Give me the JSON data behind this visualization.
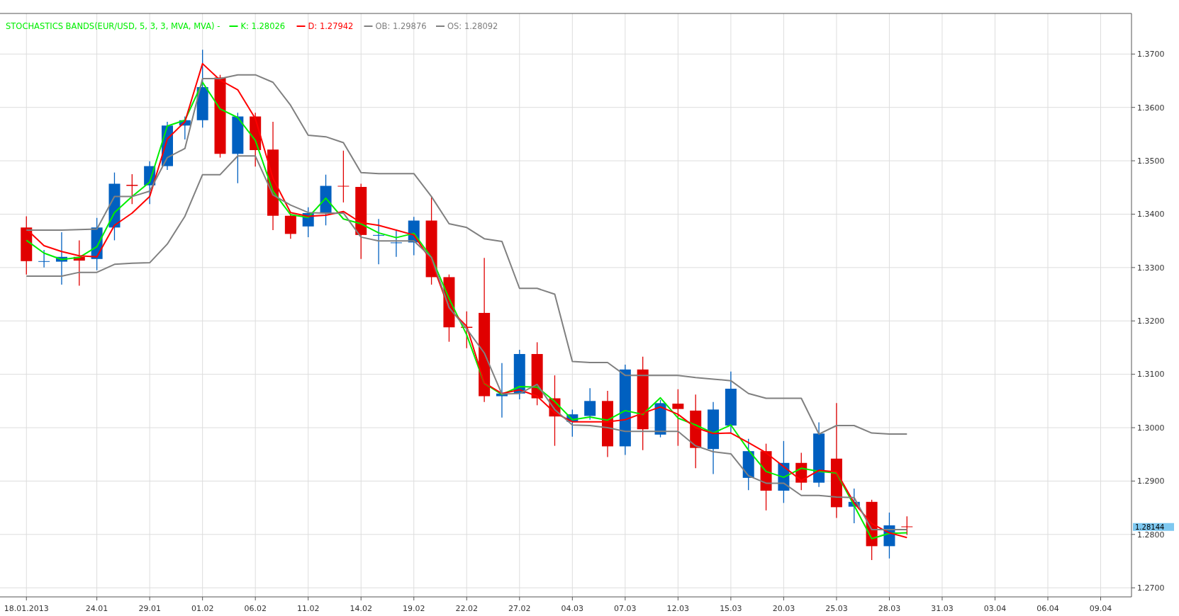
{
  "chart_data": {
    "type": "candlestick",
    "title": "STOCHASTICS BANDS(EUR/USD, 5, 3, 3, MVA, MVA) -",
    "categories": [
      "18.01.2013",
      null,
      null,
      null,
      "24.01",
      null,
      null,
      "29.01",
      null,
      null,
      "01.02",
      null,
      null,
      "06.02",
      null,
      null,
      "11.02",
      null,
      null,
      "14.02",
      null,
      null,
      "19.02",
      null,
      null,
      "22.02",
      null,
      null,
      "27.02",
      null,
      null,
      "04.03",
      null,
      null,
      "07.03",
      null,
      null,
      "12.03",
      null,
      null,
      "15.03",
      null,
      null,
      "20.03",
      null,
      null,
      "25.03",
      null,
      null,
      "28.03",
      null,
      null,
      "31.03",
      null,
      null,
      "03.04",
      null,
      null,
      "06.04",
      null,
      null,
      "09.04",
      null
    ],
    "ohlc": [
      [
        1.3375,
        1.3396,
        1.3287,
        1.3312
      ],
      [
        1.3311,
        1.3333,
        1.33,
        1.3312
      ],
      [
        1.3311,
        1.3366,
        1.3268,
        1.332
      ],
      [
        1.332,
        1.3351,
        1.3266,
        1.3313
      ],
      [
        1.3316,
        1.3393,
        1.3295,
        1.3375
      ],
      [
        1.3375,
        1.3478,
        1.3351,
        1.3457
      ],
      [
        1.3455,
        1.3475,
        1.3419,
        1.3453
      ],
      [
        1.3454,
        1.3499,
        1.3419,
        1.349
      ],
      [
        1.349,
        1.3573,
        1.3483,
        1.3566
      ],
      [
        1.3566,
        1.3583,
        1.354,
        1.3576
      ],
      [
        1.3576,
        1.3708,
        1.3562,
        1.3638
      ],
      [
        1.3656,
        1.3661,
        1.3506,
        1.3513
      ],
      [
        1.3513,
        1.359,
        1.3458,
        1.3583
      ],
      [
        1.3583,
        1.359,
        1.3489,
        1.352
      ],
      [
        1.3521,
        1.3573,
        1.337,
        1.3397
      ],
      [
        1.3397,
        1.34,
        1.3354,
        1.3363
      ],
      [
        1.3377,
        1.3413,
        1.3357,
        1.3402
      ],
      [
        1.3402,
        1.3474,
        1.3379,
        1.3453
      ],
      [
        1.3453,
        1.3519,
        1.3422,
        1.3452
      ],
      [
        1.3451,
        1.3457,
        1.3316,
        1.3361
      ],
      [
        1.336,
        1.3391,
        1.3306,
        1.3361
      ],
      [
        1.3346,
        1.3371,
        1.332,
        1.3347
      ],
      [
        1.3347,
        1.3395,
        1.3323,
        1.3388
      ],
      [
        1.3388,
        1.3433,
        1.3268,
        1.3282
      ],
      [
        1.3282,
        1.3287,
        1.3161,
        1.3188
      ],
      [
        1.3189,
        1.3218,
        1.3149,
        1.3187
      ],
      [
        1.3215,
        1.3318,
        1.3048,
        1.3059
      ],
      [
        1.3059,
        1.3121,
        1.3019,
        1.3064
      ],
      [
        1.3064,
        1.3146,
        1.3053,
        1.3138
      ],
      [
        1.3138,
        1.316,
        1.3042,
        1.3055
      ],
      [
        1.3055,
        1.3098,
        1.2966,
        1.3021
      ],
      [
        1.3011,
        1.3034,
        1.2983,
        1.3025
      ],
      [
        1.3022,
        1.3074,
        1.3015,
        1.305
      ],
      [
        1.305,
        1.3069,
        1.2945,
        1.2965
      ],
      [
        1.2965,
        1.3118,
        1.2949,
        1.3109
      ],
      [
        1.3109,
        1.3133,
        1.2958,
        1.2997
      ],
      [
        1.2987,
        1.3052,
        1.2982,
        1.3046
      ],
      [
        1.3045,
        1.3072,
        1.2966,
        1.3035
      ],
      [
        1.3032,
        1.3062,
        1.2924,
        1.2962
      ],
      [
        1.296,
        1.3048,
        1.2913,
        1.3034
      ],
      [
        1.3004,
        1.3105,
        1.2991,
        1.3073
      ],
      [
        1.2906,
        1.2979,
        1.2883,
        1.2956
      ],
      [
        1.2956,
        1.297,
        1.2845,
        1.2882
      ],
      [
        1.2882,
        1.2975,
        1.2859,
        1.2934
      ],
      [
        1.2934,
        1.2953,
        1.2883,
        1.2897
      ],
      [
        1.2897,
        1.301,
        1.2889,
        1.2989
      ],
      [
        1.2942,
        1.3046,
        1.2831,
        1.2851
      ],
      [
        1.2852,
        1.2886,
        1.2821,
        1.2861
      ],
      [
        1.2861,
        1.2865,
        1.2752,
        1.2778
      ],
      [
        1.2778,
        1.2841,
        1.2755,
        1.2817
      ],
      [
        1.2815,
        1.2834,
        1.2799,
        1.2814
      ],
      null,
      null,
      null,
      null,
      null,
      null,
      null,
      null,
      null,
      null,
      null,
      null
    ],
    "colors": [
      "#e00000",
      "#0060c0",
      "#0060c0",
      "#e00000",
      "#0060c0",
      "#0060c0",
      "#e00000",
      "#0060c0",
      "#0060c0",
      "#0060c0",
      "#0060c0",
      "#e00000",
      "#0060c0",
      "#e00000",
      "#e00000",
      "#e00000",
      "#0060c0",
      "#0060c0",
      "#e00000",
      "#e00000",
      "#0060c0",
      "#0060c0",
      "#0060c0",
      "#e00000",
      "#e00000",
      "#e00000",
      "#e00000",
      "#0060c0",
      "#0060c0",
      "#e00000",
      "#e00000",
      "#0060c0",
      "#0060c0",
      "#e00000",
      "#0060c0",
      "#e00000",
      "#0060c0",
      "#e00000",
      "#e00000",
      "#0060c0",
      "#0060c0",
      "#0060c0",
      "#e00000",
      "#0060c0",
      "#e00000",
      "#0060c0",
      "#e00000",
      "#0060c0",
      "#e00000",
      "#0060c0",
      "#e00000",
      null,
      null,
      null,
      null,
      null,
      null,
      null,
      null,
      null,
      null,
      null,
      null
    ],
    "series": [
      {
        "name": "K: 1.28026",
        "type": "line",
        "color": "#00ee00",
        "values": [
          1.3351,
          1.3327,
          1.3315,
          1.3319,
          1.3339,
          1.3403,
          1.3433,
          1.346,
          1.3565,
          1.3576,
          1.3647,
          1.3597,
          1.3581,
          1.3538,
          1.3443,
          1.3399,
          1.3394,
          1.343,
          1.3391,
          1.3382,
          1.3365,
          1.3356,
          1.3364,
          1.3319,
          1.3242,
          1.3174,
          1.3083,
          1.3062,
          1.3077,
          1.3076,
          1.3049,
          1.3015,
          1.302,
          1.3014,
          1.3032,
          1.3025,
          1.3056,
          1.3018,
          1.3005,
          1.299,
          1.3005,
          1.2958,
          1.2918,
          1.2907,
          1.2924,
          1.2918,
          1.2915,
          1.2854,
          1.2792,
          1.2802,
          1.2803,
          null,
          null,
          null,
          null,
          null,
          null,
          null,
          null,
          null,
          null,
          null,
          null
        ]
      },
      {
        "name": "D: 1.27942",
        "type": "line",
        "color": "#ff0000",
        "values": [
          1.3372,
          1.3341,
          1.333,
          1.3322,
          1.332,
          1.3379,
          1.3402,
          1.3433,
          1.3541,
          1.3573,
          1.3682,
          1.3651,
          1.3633,
          1.3579,
          1.3467,
          1.3403,
          1.3396,
          1.3398,
          1.3405,
          1.3384,
          1.3379,
          1.337,
          1.3361,
          1.3312,
          1.3223,
          1.319,
          1.3084,
          1.3064,
          1.3071,
          1.3059,
          1.3028,
          1.3011,
          1.3011,
          1.3011,
          1.3015,
          1.3027,
          1.3039,
          1.3025,
          1.3,
          1.2989,
          1.299,
          1.2972,
          1.2953,
          1.2927,
          1.2901,
          1.292,
          1.2917,
          1.2859,
          1.282,
          1.2803,
          1.2794,
          null,
          null,
          null,
          null,
          null,
          null,
          null,
          null,
          null,
          null,
          null,
          null
        ]
      },
      {
        "name": "OB: 1.29876",
        "type": "line",
        "color": "#808080",
        "values": [
          1.337,
          1.337,
          1.337,
          1.3371,
          1.3372,
          1.3433,
          1.3433,
          1.3443,
          1.3506,
          1.3523,
          1.3654,
          1.3654,
          1.3661,
          1.3661,
          1.3647,
          1.3604,
          1.3548,
          1.3545,
          1.3534,
          1.3478,
          1.3476,
          1.3476,
          1.3476,
          1.3433,
          1.3382,
          1.3375,
          1.3354,
          1.3349,
          1.3261,
          1.3261,
          1.325,
          1.3124,
          1.3122,
          1.3122,
          1.3098,
          1.3098,
          1.3098,
          1.3098,
          1.3094,
          1.3091,
          1.3088,
          1.3064,
          1.3055,
          1.3055,
          1.3055,
          1.2988,
          1.3004,
          1.3004,
          1.299,
          1.2988,
          1.2988,
          null,
          null,
          null,
          null,
          null,
          null,
          null,
          null,
          null,
          null,
          null,
          null
        ]
      },
      {
        "name": "OS: 1.28092",
        "type": "line",
        "color": "#808080",
        "values": [
          1.3284,
          1.3284,
          1.3284,
          1.3291,
          1.3291,
          1.3306,
          1.3308,
          1.3309,
          1.3344,
          1.3396,
          1.3474,
          1.3474,
          1.3509,
          1.3509,
          1.3436,
          1.3417,
          1.3403,
          1.3402,
          1.3402,
          1.3357,
          1.335,
          1.335,
          1.335,
          1.3319,
          1.3225,
          1.3185,
          1.314,
          1.3063,
          1.3064,
          1.3081,
          1.3034,
          1.3005,
          1.3004,
          1.3,
          1.2993,
          1.2993,
          1.2993,
          1.2993,
          1.2966,
          1.2955,
          1.2951,
          1.291,
          1.2896,
          1.2896,
          1.2873,
          1.2873,
          1.287,
          1.2869,
          1.2809,
          1.2809,
          1.2809,
          null,
          null,
          null,
          null,
          null,
          null,
          null,
          null,
          null,
          null,
          null,
          null
        ]
      }
    ],
    "ylim": [
      1.2683,
      1.3776
    ],
    "yticks": [
      {
        "value": 1.27,
        "label": "1.2700"
      },
      {
        "value": 1.28,
        "label": "1.2800"
      },
      {
        "value": 1.29,
        "label": "1.2900"
      },
      {
        "value": 1.3,
        "label": "1.3000"
      },
      {
        "value": 1.31,
        "label": "1.3100"
      },
      {
        "value": 1.32,
        "label": "1.3200"
      },
      {
        "value": 1.33,
        "label": "1.3300"
      },
      {
        "value": 1.34,
        "label": "1.3400"
      },
      {
        "value": 1.35,
        "label": "1.3500"
      },
      {
        "value": 1.36,
        "label": "1.3600"
      },
      {
        "value": 1.37,
        "label": "1.3700"
      }
    ],
    "annotations": [
      "1.28144"
    ],
    "grid": true,
    "legend": "top left"
  }
}
